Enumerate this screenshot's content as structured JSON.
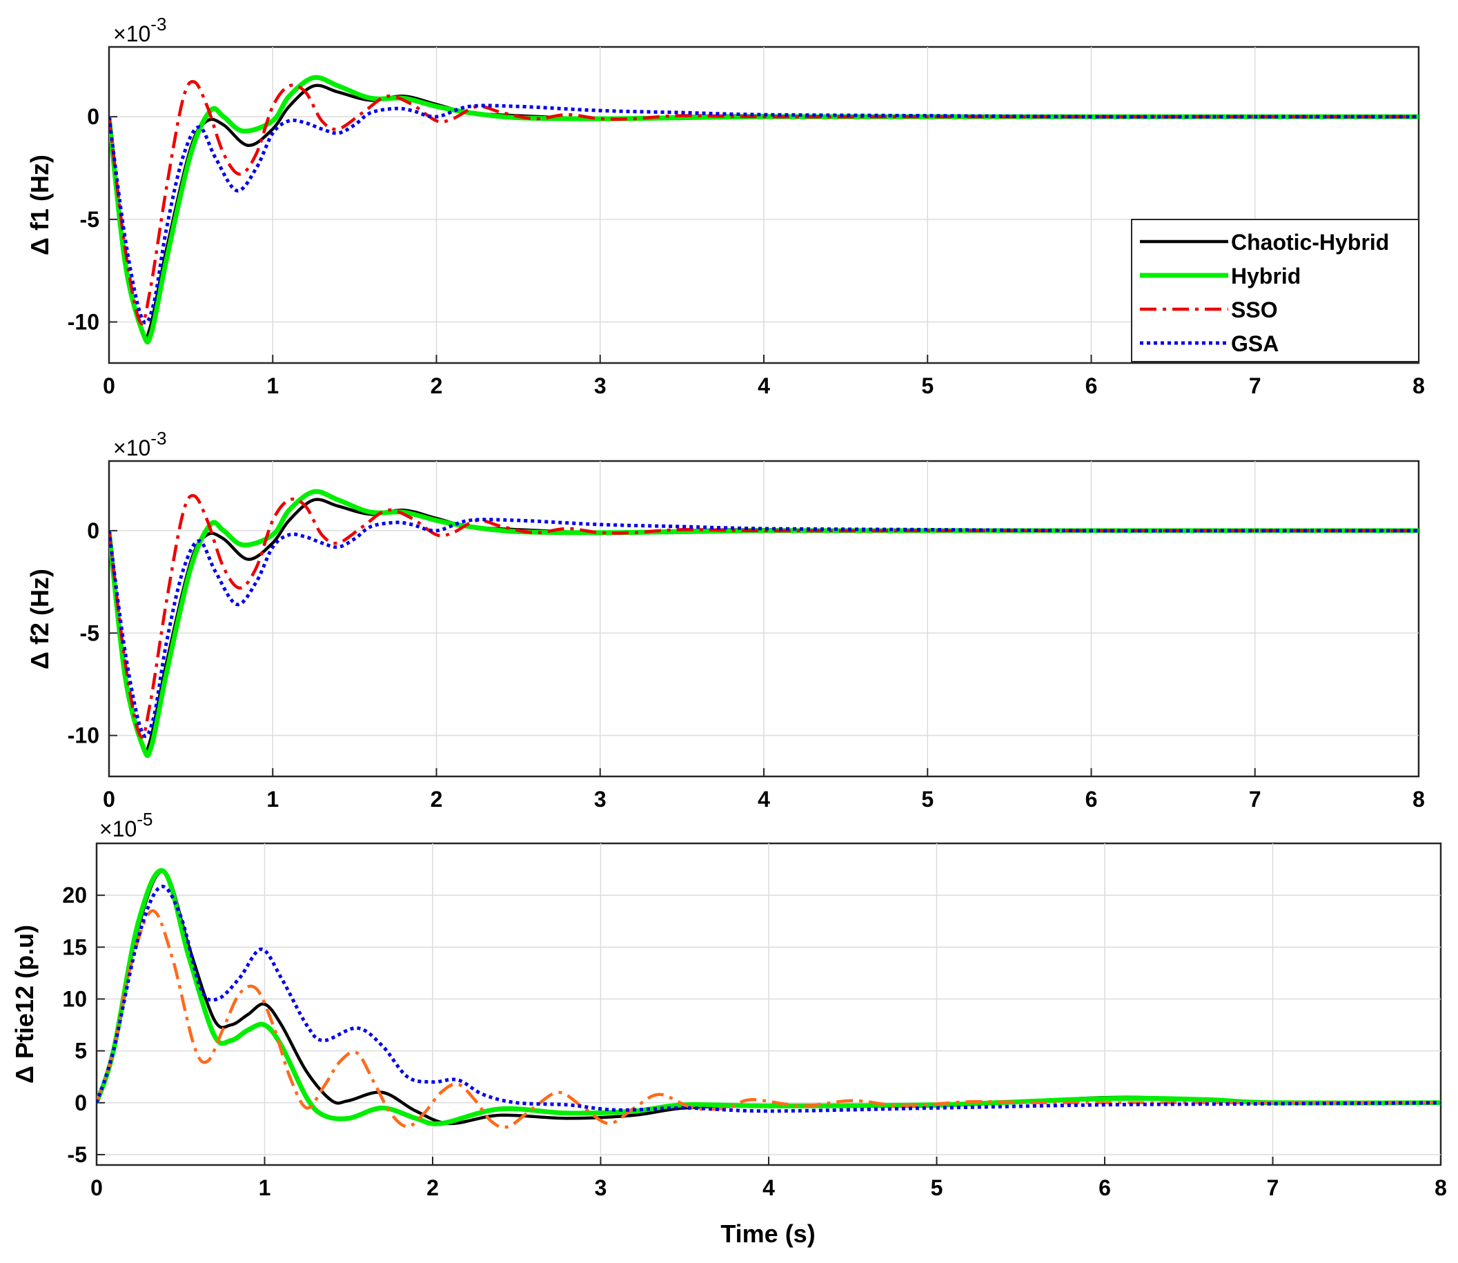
{
  "chart_data": [
    {
      "type": "line",
      "ylabel": "Δ f1 (Hz)",
      "xlabel": "",
      "exponent_base": "×10",
      "exponent_power": "-3",
      "xlim": [
        0,
        8
      ],
      "ylim": [
        -12,
        3.4
      ],
      "xticks": [
        0,
        1,
        2,
        3,
        4,
        5,
        6,
        7,
        8
      ],
      "xtick_labels": [
        "0",
        "1",
        "2",
        "3",
        "4",
        "5",
        "6",
        "7",
        "8"
      ],
      "yticks": [
        -10,
        -5,
        0
      ],
      "ytick_labels": [
        "-10",
        "-5",
        "0"
      ],
      "grid": true,
      "legend": {
        "position": "right",
        "entries": [
          {
            "label": "Chaotic-Hybrid",
            "series": "Chaotic-Hybrid"
          },
          {
            "label": "Hybrid",
            "series": "Hybrid"
          },
          {
            "label": "SSO",
            "series": "SSO"
          },
          {
            "label": "GSA",
            "series": "GSA"
          }
        ]
      },
      "series": [
        {
          "name": "Chaotic-Hybrid",
          "color": "#000000",
          "style": "solid",
          "x": [
            0,
            0.1,
            0.2,
            0.25,
            0.35,
            0.5,
            0.6,
            0.7,
            0.85,
            1.0,
            1.1,
            1.25,
            1.4,
            1.6,
            1.8,
            2.0,
            2.2,
            2.5,
            3.0,
            3.5,
            4.0,
            5.0,
            6.0,
            7.0,
            8.0
          ],
          "y": [
            0,
            -7,
            -10.4,
            -10.3,
            -6.5,
            -1.5,
            -0.2,
            -0.4,
            -1.4,
            -0.6,
            0.5,
            1.5,
            1.2,
            0.8,
            1.0,
            0.6,
            0.2,
            0.05,
            -0.1,
            0,
            0.05,
            0,
            0,
            0,
            0
          ]
        },
        {
          "name": "Hybrid",
          "color": "#00ee00",
          "style": "solid",
          "x": [
            0,
            0.1,
            0.21,
            0.26,
            0.35,
            0.5,
            0.62,
            0.7,
            0.82,
            1.0,
            1.1,
            1.25,
            1.4,
            1.6,
            1.8,
            2.0,
            2.2,
            2.5,
            3.0,
            3.5,
            4.0,
            5.0,
            6.0,
            7.0,
            8.0
          ],
          "y": [
            0,
            -7.2,
            -10.6,
            -10.5,
            -7,
            -1.8,
            0.3,
            0,
            -0.7,
            -0.2,
            1.0,
            1.9,
            1.5,
            0.9,
            0.9,
            0.5,
            0.2,
            -0.05,
            -0.1,
            -0.05,
            0,
            0,
            0,
            0,
            0
          ]
        },
        {
          "name": "SSO",
          "color": "#ee0000",
          "style": "dashdot",
          "x": [
            0,
            0.1,
            0.19,
            0.25,
            0.35,
            0.45,
            0.52,
            0.6,
            0.7,
            0.8,
            0.9,
            1.0,
            1.1,
            1.2,
            1.3,
            1.4,
            1.55,
            1.7,
            1.85,
            2.0,
            2.1,
            2.25,
            2.4,
            2.6,
            2.8,
            3.0,
            3.2,
            3.5,
            4.0,
            5.0,
            6.0,
            7.0,
            8.0
          ],
          "y": [
            0,
            -6.5,
            -10.0,
            -8.5,
            -3.5,
            0.8,
            1.7,
            0.5,
            -1.8,
            -2.8,
            -1.8,
            0.5,
            1.5,
            1.2,
            -0.2,
            -0.6,
            0.2,
            1.0,
            0.6,
            -0.2,
            -0.1,
            0.5,
            0.2,
            -0.1,
            0.1,
            -0.1,
            -0.1,
            0.05,
            0,
            0,
            0,
            0,
            0
          ]
        },
        {
          "name": "GSA",
          "color": "#0000ee",
          "style": "dotted",
          "x": [
            0,
            0.1,
            0.2,
            0.27,
            0.35,
            0.45,
            0.55,
            0.65,
            0.78,
            0.9,
            1.0,
            1.1,
            1.2,
            1.3,
            1.4,
            1.5,
            1.6,
            1.75,
            1.85,
            2.0,
            2.2,
            2.5,
            3.0,
            3.5,
            4.0,
            5.0,
            6.0,
            7.0,
            8.0
          ],
          "y": [
            0,
            -6,
            -9.8,
            -9.2,
            -5.5,
            -2.0,
            -0.5,
            -2.0,
            -3.6,
            -2.5,
            -0.8,
            -0.2,
            -0.3,
            -0.6,
            -0.8,
            -0.4,
            0.2,
            0.4,
            0.3,
            0,
            0.5,
            0.5,
            0.3,
            0.2,
            0.1,
            0.05,
            0,
            0,
            0
          ]
        }
      ]
    },
    {
      "type": "line",
      "ylabel": "Δ f2 (Hz)",
      "xlabel": "",
      "exponent_base": "×10",
      "exponent_power": "-3",
      "xlim": [
        0,
        8
      ],
      "ylim": [
        -12,
        3.4
      ],
      "xticks": [
        0,
        1,
        2,
        3,
        4,
        5,
        6,
        7,
        8
      ],
      "xtick_labels": [
        "0",
        "1",
        "2",
        "3",
        "4",
        "5",
        "6",
        "7",
        "8"
      ],
      "yticks": [
        -10,
        -5,
        0
      ],
      "ytick_labels": [
        "-10",
        "-5",
        "0"
      ],
      "grid": true,
      "series": [
        {
          "name": "Chaotic-Hybrid",
          "color": "#000000",
          "style": "solid",
          "x": [
            0,
            0.1,
            0.2,
            0.25,
            0.35,
            0.5,
            0.6,
            0.7,
            0.85,
            1.0,
            1.1,
            1.25,
            1.4,
            1.6,
            1.8,
            2.0,
            2.2,
            2.5,
            3.0,
            3.5,
            4.0,
            5.0,
            6.0,
            7.0,
            8.0
          ],
          "y": [
            0,
            -7,
            -10.4,
            -10.3,
            -6.5,
            -1.5,
            -0.2,
            -0.4,
            -1.4,
            -0.6,
            0.5,
            1.5,
            1.2,
            0.8,
            1.0,
            0.6,
            0.2,
            0.05,
            -0.1,
            0,
            0.05,
            0,
            0,
            0,
            0
          ]
        },
        {
          "name": "Hybrid",
          "color": "#00ee00",
          "style": "solid",
          "x": [
            0,
            0.1,
            0.21,
            0.26,
            0.35,
            0.5,
            0.62,
            0.7,
            0.82,
            1.0,
            1.1,
            1.25,
            1.4,
            1.6,
            1.8,
            2.0,
            2.2,
            2.5,
            3.0,
            3.5,
            4.0,
            5.0,
            6.0,
            7.0,
            8.0
          ],
          "y": [
            0,
            -7.2,
            -10.6,
            -10.5,
            -7,
            -1.8,
            0.3,
            0,
            -0.7,
            -0.2,
            1.0,
            1.9,
            1.5,
            0.9,
            0.9,
            0.5,
            0.2,
            -0.05,
            -0.1,
            -0.05,
            0,
            0,
            0,
            0,
            0
          ]
        },
        {
          "name": "SSO",
          "color": "#ee0000",
          "style": "dashdot",
          "x": [
            0,
            0.1,
            0.19,
            0.25,
            0.35,
            0.45,
            0.52,
            0.6,
            0.7,
            0.8,
            0.9,
            1.0,
            1.1,
            1.2,
            1.3,
            1.4,
            1.55,
            1.7,
            1.85,
            2.0,
            2.1,
            2.25,
            2.4,
            2.6,
            2.8,
            3.0,
            3.2,
            3.5,
            4.0,
            5.0,
            6.0,
            7.0,
            8.0
          ],
          "y": [
            0,
            -6.5,
            -10.0,
            -8.5,
            -3.5,
            0.8,
            1.7,
            0.5,
            -1.8,
            -2.8,
            -1.8,
            0.5,
            1.5,
            1.2,
            -0.2,
            -0.6,
            0.2,
            1.0,
            0.6,
            -0.2,
            -0.1,
            0.5,
            0.2,
            -0.1,
            0.1,
            -0.1,
            -0.1,
            0.05,
            0,
            0,
            0,
            0,
            0
          ]
        },
        {
          "name": "GSA",
          "color": "#0000ee",
          "style": "dotted",
          "x": [
            0,
            0.1,
            0.2,
            0.27,
            0.35,
            0.45,
            0.55,
            0.65,
            0.78,
            0.9,
            1.0,
            1.1,
            1.2,
            1.3,
            1.4,
            1.5,
            1.6,
            1.75,
            1.85,
            2.0,
            2.2,
            2.5,
            3.0,
            3.5,
            4.0,
            5.0,
            6.0,
            7.0,
            8.0
          ],
          "y": [
            0,
            -6,
            -9.8,
            -9.2,
            -5.5,
            -2.0,
            -0.5,
            -2.0,
            -3.6,
            -2.5,
            -0.8,
            -0.2,
            -0.3,
            -0.6,
            -0.8,
            -0.4,
            0.2,
            0.4,
            0.3,
            0,
            0.5,
            0.5,
            0.3,
            0.2,
            0.1,
            0.05,
            0,
            0,
            0
          ]
        }
      ]
    },
    {
      "type": "line",
      "ylabel": "Δ Ptie12 (p.u)",
      "xlabel": "Time (s)",
      "exponent_base": "×10",
      "exponent_power": "-5",
      "xlim": [
        0,
        8
      ],
      "ylim": [
        -6,
        25
      ],
      "xticks": [
        0,
        1,
        2,
        3,
        4,
        5,
        6,
        7,
        8
      ],
      "xtick_labels": [
        "0",
        "1",
        "2",
        "3",
        "4",
        "5",
        "6",
        "7",
        "8"
      ],
      "yticks": [
        -5,
        0,
        5,
        10,
        15,
        20
      ],
      "ytick_labels": [
        "-5",
        "0",
        "5",
        "10",
        "15",
        "20"
      ],
      "grid": true,
      "series": [
        {
          "name": "Chaotic-Hybrid",
          "color": "#000000",
          "style": "solid",
          "x": [
            0,
            0.1,
            0.25,
            0.4,
            0.55,
            0.7,
            0.8,
            0.9,
            1.0,
            1.1,
            1.25,
            1.4,
            1.5,
            1.7,
            1.9,
            2.1,
            2.4,
            2.8,
            3.2,
            3.5,
            4.0,
            5.0,
            6.0,
            6.6,
            7.0,
            8.0
          ],
          "y": [
            0,
            5,
            17,
            22.3,
            15,
            8,
            7.5,
            8.5,
            9.5,
            7.5,
            3,
            0.2,
            0.2,
            1,
            -0.8,
            -2,
            -1.2,
            -1.5,
            -1.2,
            -0.5,
            -0.3,
            -0.3,
            0.5,
            0.3,
            0,
            0
          ]
        },
        {
          "name": "Hybrid",
          "color": "#00ee00",
          "style": "solid",
          "x": [
            0,
            0.1,
            0.25,
            0.4,
            0.55,
            0.7,
            0.8,
            0.9,
            1.0,
            1.1,
            1.25,
            1.35,
            1.5,
            1.7,
            1.9,
            2.05,
            2.4,
            2.8,
            3.2,
            3.5,
            4.0,
            5.0,
            6.0,
            6.6,
            7.0,
            8.0
          ],
          "y": [
            0,
            5,
            17.5,
            22.3,
            14,
            6.5,
            6,
            7,
            7.5,
            5.5,
            0.5,
            -1.2,
            -1.5,
            -0.5,
            -1.5,
            -2,
            -0.6,
            -1,
            -0.8,
            -0.2,
            -0.3,
            -0.2,
            0.4,
            0.3,
            0,
            0
          ]
        },
        {
          "name": "SSO",
          "color": "#ff6a1a",
          "style": "dashdot",
          "x": [
            0,
            0.1,
            0.2,
            0.33,
            0.45,
            0.58,
            0.66,
            0.75,
            0.85,
            0.95,
            1.05,
            1.15,
            1.25,
            1.35,
            1.45,
            1.55,
            1.65,
            1.75,
            1.85,
            1.95,
            2.05,
            2.15,
            2.25,
            2.35,
            2.45,
            2.6,
            2.75,
            2.9,
            3.05,
            3.2,
            3.35,
            3.55,
            3.75,
            3.9,
            4.2,
            4.5,
            4.8,
            5.2,
            5.6,
            6.0,
            7.0,
            8.0
          ],
          "y": [
            0,
            5,
            13,
            18.5,
            14,
            5.5,
            4,
            7,
            10.5,
            11,
            7.5,
            2.5,
            -0.5,
            1.5,
            4,
            4.8,
            2,
            -1,
            -2.3,
            -1,
            1,
            1.8,
            0.3,
            -1.8,
            -2.3,
            -0.5,
            1,
            -0.5,
            -2,
            -0.5,
            0.8,
            -0.5,
            -0.5,
            0.3,
            -0.3,
            0.2,
            -0.3,
            0.1,
            0,
            0,
            0,
            0
          ]
        },
        {
          "name": "GSA",
          "color": "#0000ee",
          "style": "dotted",
          "x": [
            0,
            0.1,
            0.25,
            0.38,
            0.5,
            0.62,
            0.72,
            0.85,
            0.98,
            1.1,
            1.25,
            1.35,
            1.55,
            1.7,
            1.85,
            2.0,
            2.15,
            2.3,
            2.5,
            2.8,
            3.1,
            3.5,
            4.0,
            5.0,
            6.0,
            7.0,
            8.0
          ],
          "y": [
            0,
            5,
            16,
            20.8,
            18,
            11,
            10,
            12,
            14.8,
            12,
            7.5,
            6,
            7.2,
            5.5,
            2.5,
            2,
            2.2,
            0.8,
            0,
            -0.2,
            -0.7,
            -0.5,
            -0.8,
            -0.5,
            -0.2,
            -0.1,
            0
          ]
        }
      ]
    }
  ]
}
